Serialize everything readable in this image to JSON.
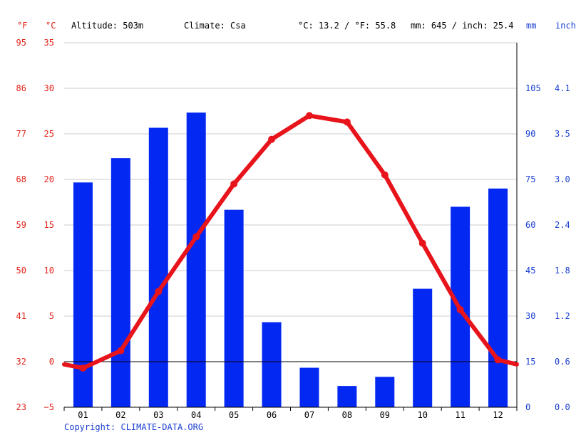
{
  "header": {
    "unit_f": "°F",
    "unit_c": "°C",
    "altitude": "Altitude: 503m",
    "climate": "Climate: Csa",
    "temp_avg": "°C: 13.2 / °F: 55.8",
    "precip_total": "mm: 645 / inch: 25.4",
    "unit_mm": "mm",
    "unit_inch": "inch"
  },
  "copyright": "Copyright: CLIMATE-DATA.ORG",
  "colors": {
    "temperature": "#e8141b",
    "precipitation": "#0328f2",
    "left_axis_labels": "#e2231a",
    "right_axis_labels": "#1a3fd1",
    "grid": "#cccccc"
  },
  "chart_data": {
    "type": "bar",
    "categories": [
      "01",
      "02",
      "03",
      "04",
      "05",
      "06",
      "07",
      "08",
      "09",
      "10",
      "11",
      "12"
    ],
    "series": [
      {
        "type": "bar",
        "unit": "mm",
        "values": [
          74,
          82,
          92,
          97,
          65,
          28,
          13,
          7,
          10,
          39,
          66,
          72
        ]
      },
      {
        "type": "line",
        "unit": "°C",
        "values": [
          -0.7,
          1.2,
          7.7,
          13.7,
          19.5,
          24.4,
          27.0,
          26.3,
          20.5,
          13.0,
          5.7,
          0.2
        ]
      }
    ],
    "y_left_c": {
      "min": -5,
      "max": 35,
      "ticks": [
        "35",
        "30",
        "25",
        "20",
        "15",
        "10",
        "5",
        "0",
        "−5"
      ]
    },
    "y_left_f": {
      "ticks": [
        "95",
        "86",
        "77",
        "68",
        "59",
        "50",
        "41",
        "32",
        "23"
      ]
    },
    "y_right_mm": {
      "min": 0,
      "max": 120,
      "ticks": [
        "105",
        "90",
        "75",
        "60",
        "45",
        "30",
        "15",
        "0"
      ]
    },
    "y_right_inch": {
      "ticks": [
        "4.1",
        "3.5",
        "3.0",
        "2.4",
        "1.8",
        "1.2",
        "0.6",
        "0.0"
      ]
    },
    "line_start_value": -0.3,
    "line_end_value": -0.3,
    "grid": true
  }
}
